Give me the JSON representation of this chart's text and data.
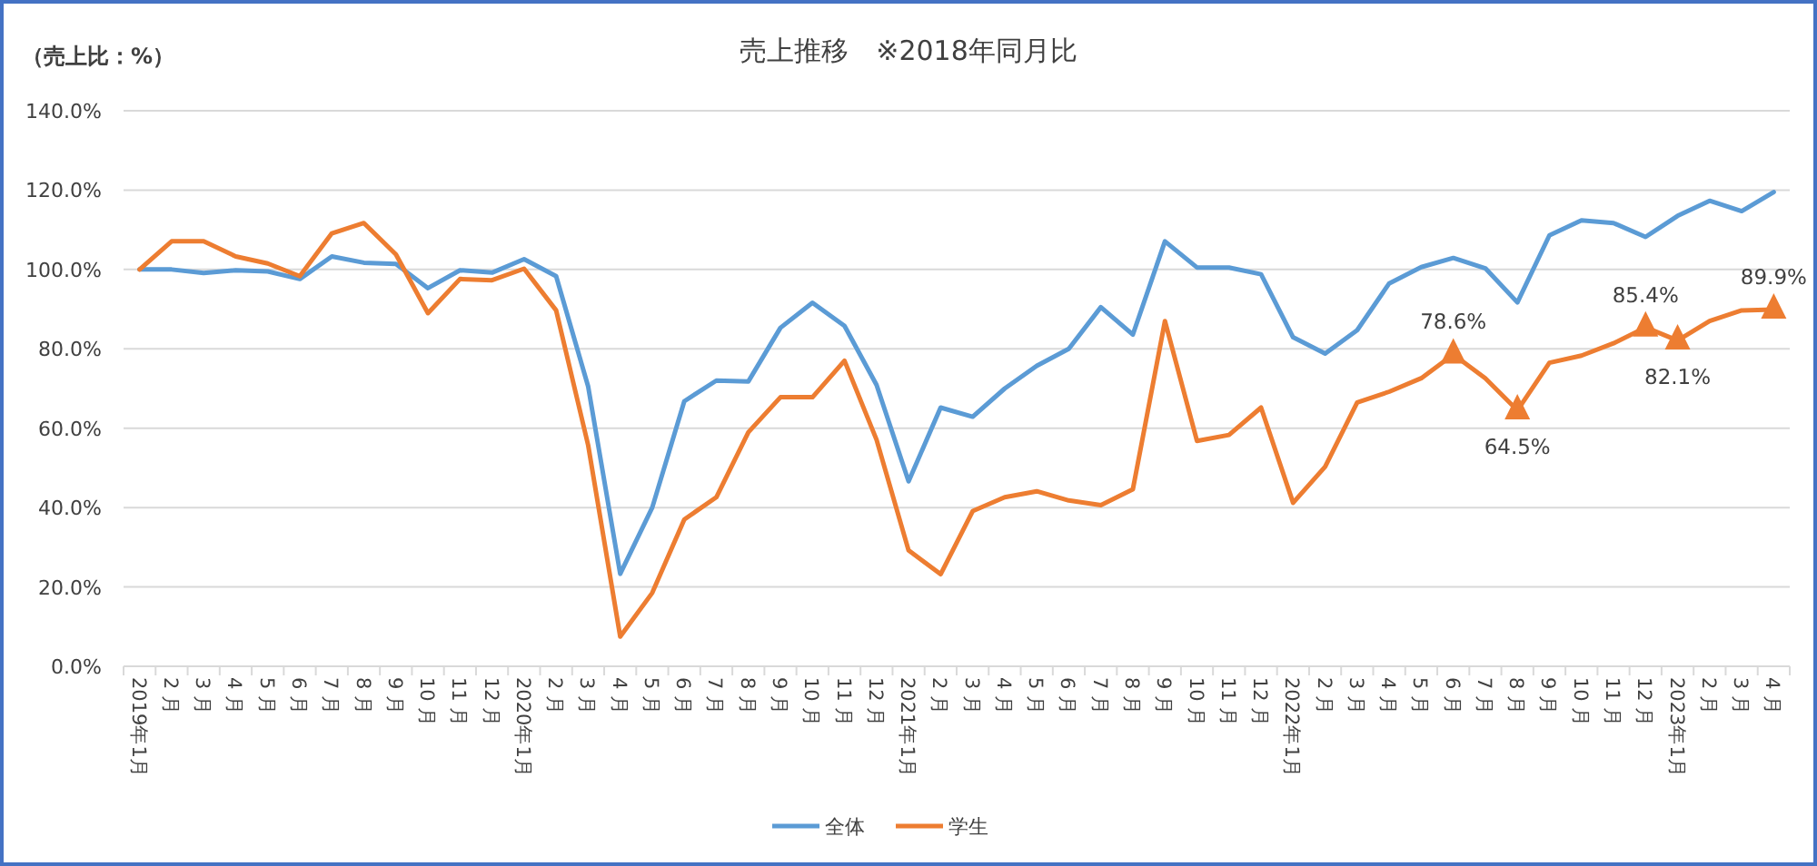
{
  "chart_data": {
    "type": "line",
    "title": "売上推移　※2018年同月比",
    "ylabel": "（売上比：%）",
    "categories": [
      "2019年1月",
      "2 月",
      "3 月",
      "4 月",
      "5 月",
      "6 月",
      "7 月",
      "8 月",
      "9 月",
      "10 月",
      "11 月",
      "12 月",
      "2020年1月",
      "2 月",
      "3 月",
      "4 月",
      "5 月",
      "6 月",
      "7 月",
      "8 月",
      "9 月",
      "10 月",
      "11 月",
      "12 月",
      "2021年1月",
      "2 月",
      "3 月",
      "4 月",
      "5 月",
      "6 月",
      "7 月",
      "8 月",
      "9 月",
      "10 月",
      "11 月",
      "12 月",
      "2022年1月",
      "2 月",
      "3 月",
      "4 月",
      "5 月",
      "6 月",
      "7 月",
      "8 月",
      "9 月",
      "10 月",
      "11 月",
      "12 月",
      "2023年1月",
      "2 月",
      "3 月",
      "4 月"
    ],
    "ylim": [
      0,
      140
    ],
    "yticks": [
      {
        "value": 0,
        "label": "0.0%"
      },
      {
        "value": 20,
        "label": "20.0%"
      },
      {
        "value": 40,
        "label": "40.0%"
      },
      {
        "value": 60,
        "label": "60.0%"
      },
      {
        "value": 80,
        "label": "80.0%"
      },
      {
        "value": 100,
        "label": "100.0%"
      },
      {
        "value": 120,
        "label": "120.0%"
      },
      {
        "value": 140,
        "label": "140.0%"
      }
    ],
    "grid": "y",
    "legend": "bottom",
    "series": [
      {
        "name": "全体",
        "color": "#5b9bd5",
        "values": [
          100,
          100,
          99.1,
          99.8,
          99.5,
          97.6,
          103.3,
          101.7,
          101.4,
          95.3,
          99.8,
          99.2,
          102.6,
          98.3,
          70.5,
          23.3,
          40,
          66.8,
          72,
          71.8,
          85.3,
          91.6,
          85.8,
          70.9,
          46.6,
          65.2,
          62.9,
          70,
          75.7,
          80,
          90.5,
          83.6,
          107.1,
          100.5,
          100.5,
          98.8,
          82.9,
          78.8,
          84.7,
          96.5,
          100.6,
          102.9,
          100.3,
          91.7,
          108.6,
          112.4,
          111.7,
          108.2,
          113.5,
          117.3,
          114.7,
          119.5
        ]
      },
      {
        "name": "学生",
        "color": "#ed7d31",
        "values": [
          100,
          107.1,
          107.1,
          103.3,
          101.5,
          98.3,
          109.1,
          111.7,
          103.8,
          89,
          97.6,
          97.3,
          100.2,
          89.7,
          55.7,
          7.5,
          18.5,
          37,
          42.6,
          59,
          67.8,
          67.8,
          77,
          57.1,
          29.2,
          23.2,
          39.1,
          42.6,
          44.1,
          41.8,
          40.6,
          44.6,
          87,
          56.8,
          58.3,
          65.2,
          41.2,
          50.3,
          66.5,
          69.2,
          72.6,
          78.6,
          72.6,
          64.5,
          76.5,
          78.3,
          81.4,
          85.4,
          82.1,
          87,
          89.7,
          89.9
        ]
      },
      {
        "type": "scatter",
        "color": "#ed7d31",
        "marker": "triangle",
        "values": [
          null,
          null,
          null,
          null,
          null,
          null,
          null,
          null,
          null,
          null,
          null,
          null,
          null,
          null,
          null,
          null,
          null,
          null,
          null,
          null,
          null,
          null,
          null,
          null,
          null,
          null,
          null,
          null,
          null,
          null,
          null,
          null,
          null,
          null,
          null,
          null,
          null,
          null,
          null,
          null,
          null,
          78.6,
          null,
          64.5,
          null,
          null,
          null,
          85.4,
          82.1,
          null,
          null,
          89.9
        ],
        "value_labels": [
          null,
          null,
          null,
          null,
          null,
          null,
          null,
          null,
          null,
          null,
          null,
          null,
          null,
          null,
          null,
          null,
          null,
          null,
          null,
          null,
          null,
          null,
          null,
          null,
          null,
          null,
          null,
          null,
          null,
          null,
          null,
          null,
          null,
          null,
          null,
          null,
          null,
          null,
          null,
          null,
          null,
          "78.6%",
          null,
          "64.5%",
          null,
          null,
          null,
          "85.4%",
          "82.1%",
          null,
          null,
          "89.9%"
        ]
      }
    ]
  }
}
